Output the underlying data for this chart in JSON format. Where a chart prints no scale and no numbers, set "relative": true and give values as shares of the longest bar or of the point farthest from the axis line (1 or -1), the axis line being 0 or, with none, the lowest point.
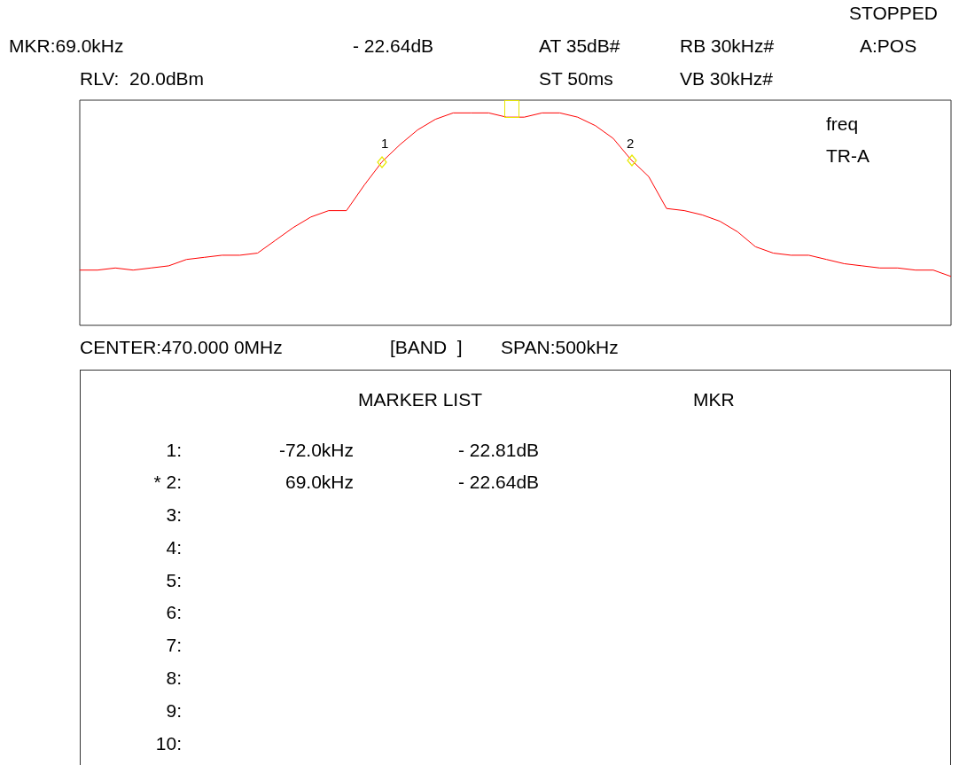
{
  "chart_data": {
    "type": "line",
    "relative": true,
    "marker": "none",
    "grid": false,
    "categories": [
      null,
      null,
      null,
      null,
      null,
      null,
      null,
      null,
      null,
      null,
      null,
      null,
      null,
      null,
      null,
      null,
      null,
      null,
      null,
      null,
      null,
      null,
      null,
      null,
      null,
      null,
      null,
      null,
      null,
      null,
      null,
      null,
      null,
      null,
      null,
      null,
      null,
      null,
      null,
      null,
      null,
      null,
      null,
      null,
      null,
      null,
      null,
      null,
      null,
      null
    ],
    "series": [
      {
        "color": "#ff0000",
        "values": [
          0.26,
          0.26,
          0.27,
          0.26,
          0.27,
          0.28,
          0.31,
          0.32,
          0.33,
          0.33,
          0.34,
          0.4,
          0.46,
          0.51,
          0.54,
          0.54,
          0.66,
          0.77,
          0.85,
          0.92,
          0.97,
          1,
          1,
          1,
          0.98,
          0.98,
          1,
          1,
          0.98,
          0.94,
          0.88,
          0.78,
          0.7,
          0.55,
          0.54,
          0.52,
          0.49,
          0.44,
          0.37,
          0.34,
          0.33,
          0.33,
          0.31,
          0.29,
          0.28,
          0.27,
          0.27,
          0.26,
          0.26,
          0.23
        ]
      }
    ],
    "annotations": [
      "STOPPED",
      "MKR:69.0kHz",
      "- 22.64dB",
      "AT 35dB#",
      "RB 30kHz#",
      "A:POS",
      "RLV:  20.0dBm",
      "ST 50ms",
      "VB 30kHz#",
      "freq",
      "TR-A",
      "CENTER:470.000 0MHz",
      "[BAND  ]",
      "SPAN:500kHz",
      "MARKER LIST",
      "MKR",
      "1:",
      "-72.0kHz",
      "- 22.81dB",
      "* 2:",
      "69.0kHz",
      "- 22.64dB",
      "3:",
      "4:",
      "5:",
      "6:",
      "7:",
      "8:",
      "9:",
      "10:",
      "1",
      "2"
    ]
  }
}
